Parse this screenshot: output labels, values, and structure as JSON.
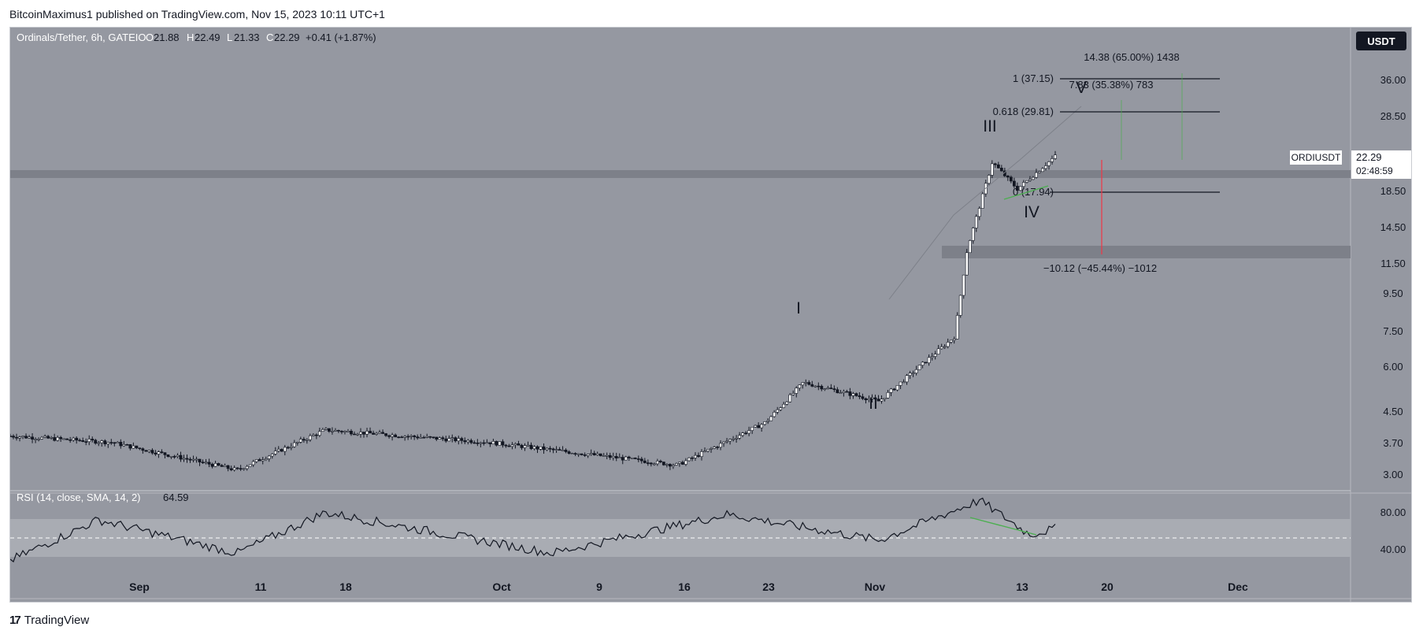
{
  "header": {
    "publisher_line": "BitcoinMaximus1 published on TradingView.com, Nov 15, 2023 10:11 UTC+1"
  },
  "footer": {
    "logo_mark": "17",
    "logo_text": "TradingView"
  },
  "legend": {
    "symbol": "Ordinals/Tether, 6h, GATEIO",
    "o_label": "O",
    "o_value": "21.88",
    "h_label": "H",
    "h_value": "22.49",
    "l_label": "L",
    "l_value": "21.33",
    "c_label": "C",
    "c_value": "22.29",
    "change": "+0.41 (+1.87%)"
  },
  "currency_button": "USDT",
  "price_tag": {
    "symbol": "ORDIUSDT",
    "price": "22.29",
    "countdown": "02:48:59"
  },
  "rsi_legend": {
    "label": "RSI (14, close, SMA, 14, 2)",
    "value": "64.59"
  },
  "annotations": {
    "wave_labels": [
      "I",
      "II",
      "III",
      "IV",
      "V"
    ],
    "fib_1": "1 (37.15)",
    "fib_0618": "0.618 (29.81)",
    "fib_0": "0 (17.94)",
    "upper_measure": "14.38 (65.00%) 1438",
    "mid_measure": "7.83 (35.38%) 783",
    "lower_measure": "−10.12 (−45.44%) −1012"
  },
  "colors": {
    "background": "#9598a1",
    "candle_up": "#ffffff",
    "candle_down": "#131722",
    "zone": "#7d8089",
    "rsi_band": "#a9acb3",
    "green_line": "#4caf50",
    "red_line": "#f23645"
  },
  "chart_data": [
    {
      "type": "candlestick",
      "title": "Ordinals/Tether, 6h, GATEIO",
      "y_scale": "log",
      "y_ticks": [
        "36.00",
        "28.50",
        "18.50",
        "14.50",
        "11.50",
        "9.50",
        "7.50",
        "6.00",
        "4.50",
        "3.70",
        "3.00"
      ],
      "x_ticks": [
        "Sep",
        "11",
        "18",
        "Oct",
        "9",
        "16",
        "23",
        "Nov",
        "13",
        "20",
        "Dec"
      ],
      "last_price": 22.29,
      "key_points": [
        {
          "date": "Aug 24",
          "close": 3.95
        },
        {
          "date": "Sep 1",
          "close": 3.8
        },
        {
          "date": "Sep 11",
          "close": 3.2
        },
        {
          "date": "Sep 18",
          "close": 4.1
        },
        {
          "date": "Oct 1",
          "close": 3.8
        },
        {
          "date": "Oct 16",
          "close": 3.3
        },
        {
          "date": "Oct 23",
          "close": 4.3
        },
        {
          "date": "Oct 26",
          "close": 5.5
        },
        {
          "date": "Nov 1",
          "close": 4.9
        },
        {
          "date": "Nov 7",
          "close": 7.3
        },
        {
          "date": "Nov 8",
          "close": 12.5
        },
        {
          "date": "Nov 10",
          "close": 21.5
        },
        {
          "date": "Nov 12",
          "close": 18.2
        },
        {
          "date": "Nov 15",
          "close": 22.29
        }
      ],
      "horizontal_zones": [
        {
          "name": "resistance/support",
          "low": 19.6,
          "high": 20.6
        },
        {
          "name": "support",
          "low": 11.8,
          "high": 12.7
        }
      ],
      "fib_levels": [
        {
          "label": "1",
          "value": 37.15
        },
        {
          "label": "0.618",
          "value": 29.81
        },
        {
          "label": "0",
          "value": 17.94
        }
      ]
    },
    {
      "type": "line",
      "title": "RSI (14, close, SMA, 14, 2)",
      "y_ticks": [
        "80.00",
        "40.00"
      ],
      "last_value": 64.59,
      "band": [
        30,
        70
      ],
      "midline": 50,
      "key_points": [
        {
          "date": "Aug 24",
          "value": 30
        },
        {
          "date": "Aug 31",
          "value": 74
        },
        {
          "date": "Sep 11",
          "value": 38
        },
        {
          "date": "Sep 18",
          "value": 82
        },
        {
          "date": "Oct 6",
          "value": 38
        },
        {
          "date": "Oct 20",
          "value": 80
        },
        {
          "date": "Nov 1",
          "value": 52
        },
        {
          "date": "Nov 9",
          "value": 95
        },
        {
          "date": "Nov 13",
          "value": 58
        },
        {
          "date": "Nov 15",
          "value": 64.59
        }
      ]
    }
  ]
}
